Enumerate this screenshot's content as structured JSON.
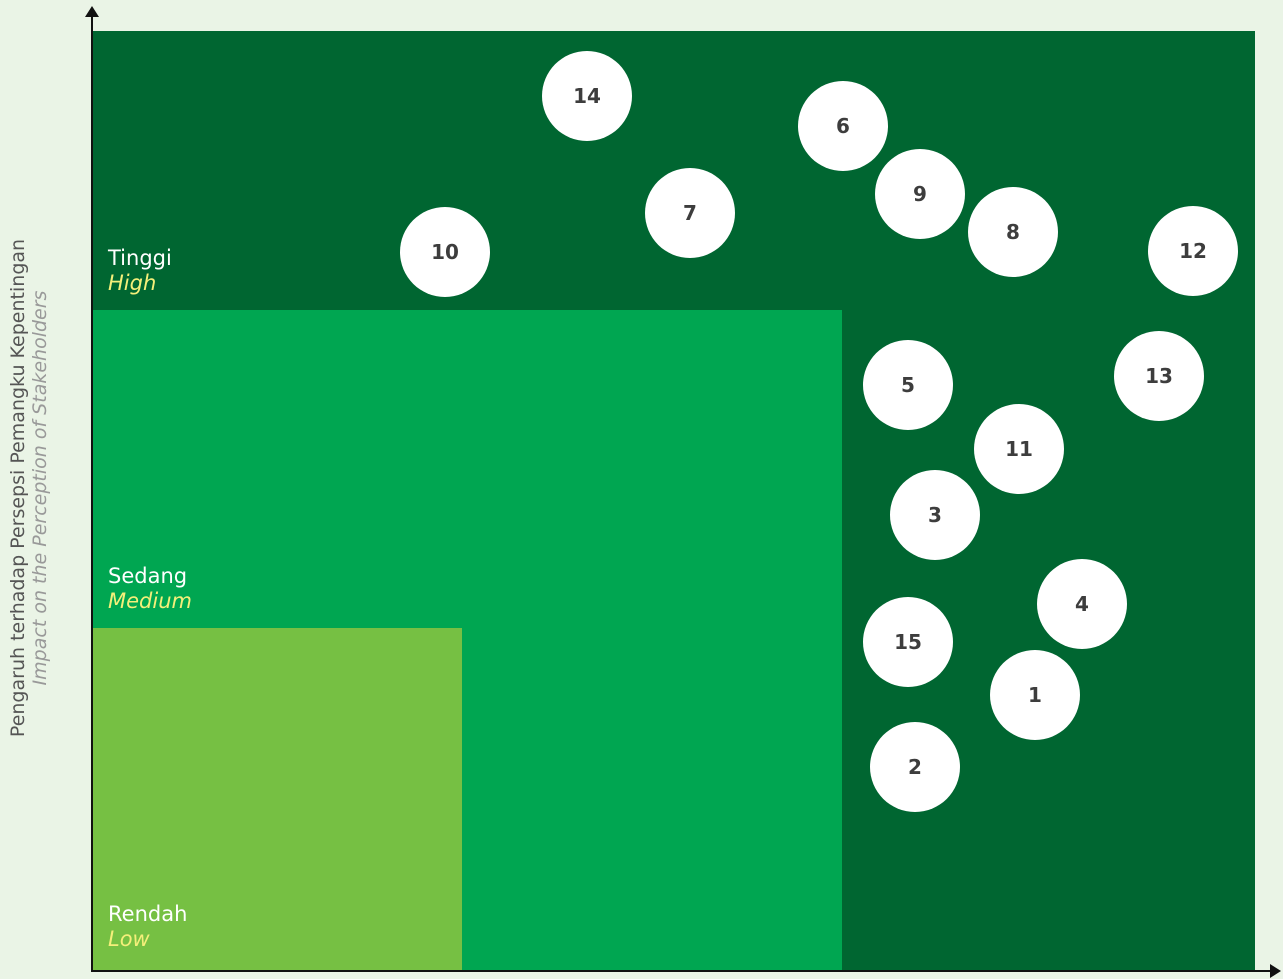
{
  "y_axis": {
    "title_id": "Pengaruh terhadap Persepsi Pemangku Kepentingan",
    "title_en": "Impact on the Perception of Stakeholders"
  },
  "zones": {
    "high": {
      "label_id": "Tinggi",
      "label_en": "High",
      "color": "#006631"
    },
    "medium": {
      "label_id": "Sedang",
      "label_en": "Medium",
      "color": "#00a651"
    },
    "low": {
      "label_id": "Rendah",
      "label_en": "Low",
      "color": "#76c043"
    }
  },
  "label_colors": {
    "id": "#ffffff",
    "en": "#f4ef7a"
  },
  "bubble_color": "#ffffff",
  "topics": [
    {
      "id": "14",
      "label": "14"
    },
    {
      "id": "6",
      "label": "6"
    },
    {
      "id": "9",
      "label": "9"
    },
    {
      "id": "7",
      "label": "7"
    },
    {
      "id": "8",
      "label": "8"
    },
    {
      "id": "10",
      "label": "10"
    },
    {
      "id": "12",
      "label": "12"
    },
    {
      "id": "13",
      "label": "13"
    },
    {
      "id": "5",
      "label": "5"
    },
    {
      "id": "11",
      "label": "11"
    },
    {
      "id": "3",
      "label": "3"
    },
    {
      "id": "4",
      "label": "4"
    },
    {
      "id": "15",
      "label": "15"
    },
    {
      "id": "1",
      "label": "1"
    },
    {
      "id": "2",
      "label": "2"
    }
  ]
}
